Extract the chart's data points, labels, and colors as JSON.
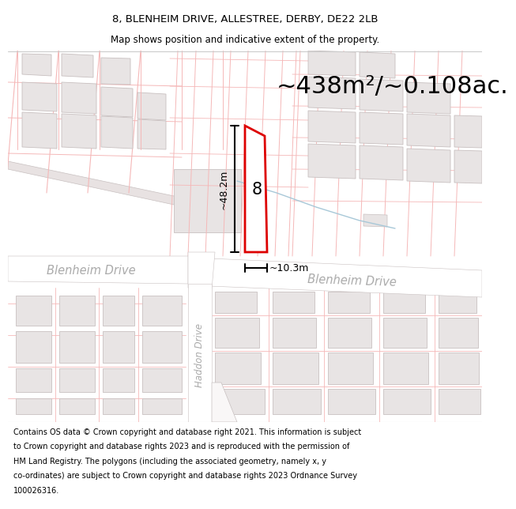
{
  "title_line1": "8, BLENHEIM DRIVE, ALLESTREE, DERBY, DE22 2LB",
  "title_line2": "Map shows position and indicative extent of the property.",
  "area_text": "~438m²/~0.108ac.",
  "dim_vertical": "~48.2m",
  "dim_horizontal": "~10.3m",
  "label_number": "8",
  "road_label_left": "Blenheim Drive",
  "road_label_right": "Blenheim Drive",
  "road_label_vertical": "Haddon Drive",
  "footer_text": "Contains OS data © Crown copyright and database right 2021. This information is subject to Crown copyright and database rights 2023 and is reproduced with the permission of HM Land Registry. The polygons (including the associated geometry, namely x, y co-ordinates) are subject to Crown copyright and database rights 2023 Ordnance Survey 100026316.",
  "bg_color": "#f9f7f7",
  "plot_outline_color": "#dd0000",
  "title_fontsize": 9.5,
  "subtitle_fontsize": 8.5,
  "area_fontsize": 22,
  "dim_fontsize": 9,
  "footer_fontsize": 7.0,
  "pink": "#f5b8b8",
  "blue": "#a8c8d8",
  "bld_fill": "#e8e4e4",
  "bld_edge": "#c8c0c0",
  "road_fill": "#ffffff",
  "title_bg": "#ffffff",
  "footer_bg": "#ffffff"
}
